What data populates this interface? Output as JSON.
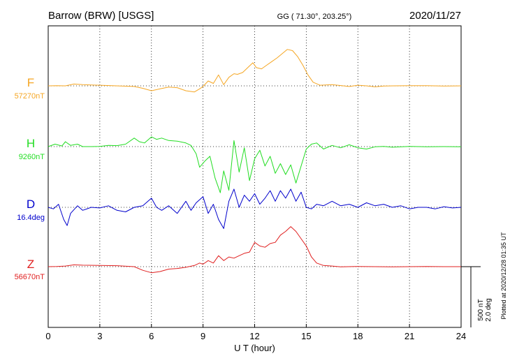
{
  "header": {
    "station": "Barrow (BRW)  [USGS]",
    "coords": "GG ( 71.30°, 203.25°)",
    "date": "2020/11/27"
  },
  "scale": {
    "nt": "500 nT",
    "deg": "2.0 deg"
  },
  "plotted_note": "Plotted at 2020/12/28 01:35 UT",
  "chart_data": {
    "type": "line",
    "xlabel": "U T (hour)",
    "xlim": [
      0,
      24
    ],
    "xticks": [
      0,
      3,
      6,
      9,
      12,
      15,
      18,
      21,
      24
    ],
    "scale_per_bar": "500 nT / 2.0 deg",
    "grid": true,
    "series": [
      {
        "name": "F",
        "baseline_label": "57270nT",
        "color": "#f5a623",
        "baseline": 57270,
        "unit": "nT",
        "points": [
          [
            0,
            57270
          ],
          [
            0.5,
            57272
          ],
          [
            1,
            57270
          ],
          [
            1.5,
            57285
          ],
          [
            2,
            57280
          ],
          [
            3,
            57275
          ],
          [
            4,
            57270
          ],
          [
            5,
            57265
          ],
          [
            5.5,
            57250
          ],
          [
            6,
            57230
          ],
          [
            6.5,
            57245
          ],
          [
            7,
            57260
          ],
          [
            7.5,
            57255
          ],
          [
            8,
            57230
          ],
          [
            8.5,
            57220
          ],
          [
            8.8,
            57245
          ],
          [
            9,
            57265
          ],
          [
            9.3,
            57310
          ],
          [
            9.6,
            57290
          ],
          [
            9.9,
            57360
          ],
          [
            10.2,
            57280
          ],
          [
            10.5,
            57340
          ],
          [
            10.8,
            57370
          ],
          [
            11,
            57365
          ],
          [
            11.3,
            57380
          ],
          [
            11.6,
            57420
          ],
          [
            11.9,
            57460
          ],
          [
            12.1,
            57420
          ],
          [
            12.4,
            57410
          ],
          [
            12.7,
            57440
          ],
          [
            13,
            57470
          ],
          [
            13.3,
            57500
          ],
          [
            13.6,
            57535
          ],
          [
            13.9,
            57570
          ],
          [
            14.2,
            57560
          ],
          [
            14.5,
            57510
          ],
          [
            14.8,
            57440
          ],
          [
            15.1,
            57360
          ],
          [
            15.4,
            57300
          ],
          [
            15.8,
            57275
          ],
          [
            16.5,
            57280
          ],
          [
            17.5,
            57265
          ],
          [
            18,
            57275
          ],
          [
            18.5,
            57270
          ],
          [
            19,
            57262
          ],
          [
            19.5,
            57268
          ],
          [
            20,
            57270
          ],
          [
            21,
            57272
          ],
          [
            22,
            57272
          ],
          [
            23,
            57268
          ],
          [
            24,
            57270
          ]
        ]
      },
      {
        "name": "H",
        "baseline_label": "9260nT",
        "color": "#22dd22",
        "baseline": 9260,
        "unit": "nT",
        "points": [
          [
            0,
            9260
          ],
          [
            0.4,
            9280
          ],
          [
            0.8,
            9265
          ],
          [
            1,
            9300
          ],
          [
            1.3,
            9270
          ],
          [
            1.7,
            9280
          ],
          [
            2,
            9260
          ],
          [
            2.5,
            9260
          ],
          [
            3,
            9262
          ],
          [
            3.5,
            9270
          ],
          [
            4,
            9268
          ],
          [
            4.5,
            9280
          ],
          [
            5,
            9330
          ],
          [
            5.3,
            9300
          ],
          [
            5.6,
            9290
          ],
          [
            6,
            9340
          ],
          [
            6.3,
            9320
          ],
          [
            6.6,
            9330
          ],
          [
            7,
            9310
          ],
          [
            7.5,
            9305
          ],
          [
            8,
            9290
          ],
          [
            8.3,
            9270
          ],
          [
            8.6,
            9200
          ],
          [
            8.8,
            9090
          ],
          [
            9.1,
            9140
          ],
          [
            9.4,
            9180
          ],
          [
            9.7,
            9000
          ],
          [
            10,
            8880
          ],
          [
            10.2,
            9060
          ],
          [
            10.5,
            8900
          ],
          [
            10.8,
            9310
          ],
          [
            11.1,
            9050
          ],
          [
            11.4,
            9250
          ],
          [
            11.7,
            8980
          ],
          [
            12,
            9160
          ],
          [
            12.3,
            9230
          ],
          [
            12.6,
            9100
          ],
          [
            12.9,
            9180
          ],
          [
            13.2,
            9040
          ],
          [
            13.5,
            9120
          ],
          [
            13.8,
            9030
          ],
          [
            14.1,
            9110
          ],
          [
            14.4,
            8960
          ],
          [
            14.7,
            9100
          ],
          [
            15,
            9240
          ],
          [
            15.3,
            9280
          ],
          [
            15.6,
            9290
          ],
          [
            16,
            9240
          ],
          [
            16.5,
            9270
          ],
          [
            17,
            9250
          ],
          [
            17.5,
            9275
          ],
          [
            18,
            9250
          ],
          [
            18.5,
            9240
          ],
          [
            19,
            9258
          ],
          [
            19.5,
            9262
          ],
          [
            20,
            9255
          ],
          [
            21,
            9262
          ],
          [
            22,
            9258
          ],
          [
            23,
            9260
          ],
          [
            24,
            9258
          ]
        ]
      },
      {
        "name": "D",
        "baseline_label": "16.4deg",
        "color": "#0000cc",
        "baseline": 16.4,
        "unit": "deg",
        "points": [
          [
            0,
            16.4
          ],
          [
            0.3,
            16.35
          ],
          [
            0.6,
            16.5
          ],
          [
            0.9,
            16.0
          ],
          [
            1.1,
            15.8
          ],
          [
            1.3,
            16.2
          ],
          [
            1.7,
            16.45
          ],
          [
            2,
            16.3
          ],
          [
            2.5,
            16.4
          ],
          [
            3,
            16.38
          ],
          [
            3.5,
            16.45
          ],
          [
            4,
            16.3
          ],
          [
            4.5,
            16.25
          ],
          [
            5,
            16.4
          ],
          [
            5.5,
            16.45
          ],
          [
            6,
            16.7
          ],
          [
            6.3,
            16.4
          ],
          [
            6.6,
            16.3
          ],
          [
            7,
            16.45
          ],
          [
            7.5,
            16.2
          ],
          [
            8,
            16.6
          ],
          [
            8.3,
            16.3
          ],
          [
            8.6,
            16.55
          ],
          [
            9,
            16.75
          ],
          [
            9.3,
            16.2
          ],
          [
            9.6,
            16.5
          ],
          [
            9.9,
            16.0
          ],
          [
            10.2,
            15.7
          ],
          [
            10.5,
            16.6
          ],
          [
            10.8,
            17.0
          ],
          [
            11.1,
            16.4
          ],
          [
            11.4,
            16.8
          ],
          [
            11.7,
            16.6
          ],
          [
            12,
            16.85
          ],
          [
            12.3,
            16.5
          ],
          [
            12.6,
            16.7
          ],
          [
            12.9,
            16.95
          ],
          [
            13.2,
            16.6
          ],
          [
            13.5,
            16.95
          ],
          [
            13.8,
            16.7
          ],
          [
            14.1,
            17.0
          ],
          [
            14.4,
            16.6
          ],
          [
            14.7,
            16.9
          ],
          [
            15,
            16.4
          ],
          [
            15.3,
            16.35
          ],
          [
            15.6,
            16.5
          ],
          [
            16,
            16.45
          ],
          [
            16.5,
            16.6
          ],
          [
            17,
            16.45
          ],
          [
            17.5,
            16.5
          ],
          [
            18,
            16.4
          ],
          [
            18.5,
            16.55
          ],
          [
            19,
            16.45
          ],
          [
            19.5,
            16.5
          ],
          [
            20,
            16.4
          ],
          [
            20.5,
            16.45
          ],
          [
            21,
            16.35
          ],
          [
            21.5,
            16.4
          ],
          [
            22,
            16.4
          ],
          [
            22.5,
            16.35
          ],
          [
            23,
            16.42
          ],
          [
            23.5,
            16.38
          ],
          [
            24,
            16.4
          ]
        ]
      },
      {
        "name": "Z",
        "baseline_label": "56670nT",
        "color": "#e02020",
        "baseline": 56670,
        "unit": "nT",
        "points": [
          [
            0,
            56670
          ],
          [
            0.5,
            56672
          ],
          [
            1,
            56675
          ],
          [
            1.5,
            56685
          ],
          [
            2,
            56682
          ],
          [
            3,
            56680
          ],
          [
            4,
            56678
          ],
          [
            5,
            56670
          ],
          [
            5.5,
            56640
          ],
          [
            6,
            56620
          ],
          [
            6.5,
            56630
          ],
          [
            7,
            56650
          ],
          [
            7.5,
            56655
          ],
          [
            8,
            56665
          ],
          [
            8.5,
            56680
          ],
          [
            8.8,
            56700
          ],
          [
            9,
            56690
          ],
          [
            9.3,
            56720
          ],
          [
            9.6,
            56700
          ],
          [
            9.9,
            56760
          ],
          [
            10.2,
            56720
          ],
          [
            10.5,
            56750
          ],
          [
            10.8,
            56740
          ],
          [
            11.1,
            56760
          ],
          [
            11.4,
            56780
          ],
          [
            11.7,
            56790
          ],
          [
            12,
            56870
          ],
          [
            12.3,
            56840
          ],
          [
            12.6,
            56830
          ],
          [
            12.9,
            56860
          ],
          [
            13.2,
            56870
          ],
          [
            13.5,
            56930
          ],
          [
            13.8,
            56960
          ],
          [
            14.1,
            57000
          ],
          [
            14.4,
            56960
          ],
          [
            14.7,
            56900
          ],
          [
            15,
            56840
          ],
          [
            15.3,
            56750
          ],
          [
            15.6,
            56700
          ],
          [
            16,
            56680
          ],
          [
            16.5,
            56675
          ],
          [
            17,
            56668
          ],
          [
            18,
            56672
          ],
          [
            19,
            56670
          ],
          [
            20,
            56668
          ],
          [
            21,
            56670
          ],
          [
            22,
            56672
          ],
          [
            23,
            56670
          ],
          [
            24,
            56670
          ]
        ]
      }
    ]
  }
}
